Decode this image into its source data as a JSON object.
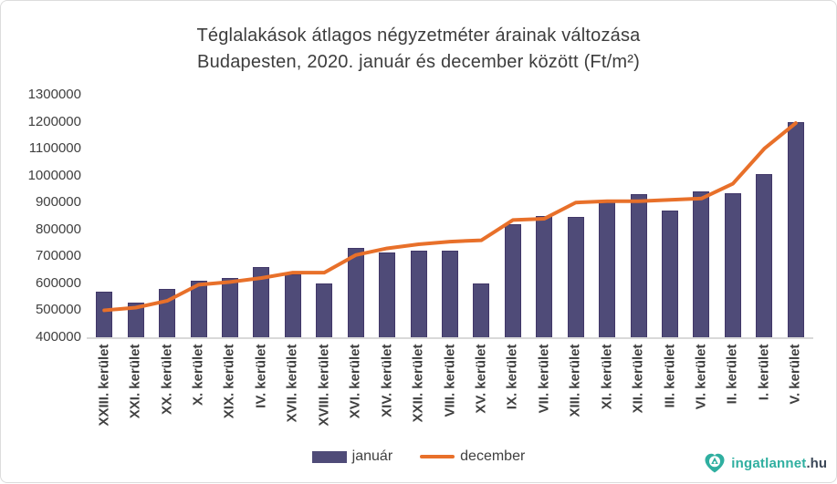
{
  "title": {
    "line1": "Téglalakások átlagos négyzetméter árainak változása",
    "line2": "Budapesten, 2020. január és december között (Ft/m²)"
  },
  "colors": {
    "bar_fill": "#4f4b78",
    "bar_border": "#413768",
    "line": "#e8702a",
    "axis": "#d9d9d9",
    "text": "#404040",
    "logo_teal": "#2fafa0",
    "logo_dark": "#3c4858"
  },
  "watermark": {
    "brand": "ingatlannet",
    "tld": ".hu"
  },
  "chart_data": {
    "type": "bar",
    "subtype": "bar-with-line-overlay",
    "title": "Téglalakások átlagos négyzetméter árainak változása Budapesten, 2020. január és december között (Ft/m²)",
    "xlabel": "",
    "ylabel": "",
    "ylim": [
      400000,
      1300000
    ],
    "ytick_step": 100000,
    "yticks": [
      400000,
      500000,
      600000,
      700000,
      800000,
      900000,
      1000000,
      1100000,
      1200000,
      1300000
    ],
    "grid": false,
    "legend_position": "bottom",
    "categories": [
      "XXIII. kerület",
      "XXI. kerület",
      "XX. kerület",
      "X. kerület",
      "XIX. kerület",
      "IV. kerület",
      "XVII. kerület",
      "XVIII. kerület",
      "XVI. kerület",
      "XIV. kerület",
      "XXII. kerület",
      "VIII. kerület",
      "XV. kerület",
      "IX. kerület",
      "VII. kerület",
      "XIII. kerület",
      "XI. kerület",
      "XII. kerület",
      "III. kerület",
      "VI. kerület",
      "II. kerület",
      "I. kerület",
      "V. kerület"
    ],
    "series": [
      {
        "name": "január",
        "type": "bar",
        "color": "#4f4b78",
        "values": [
          570000,
          530000,
          580000,
          610000,
          620000,
          660000,
          635000,
          600000,
          730000,
          715000,
          720000,
          720000,
          600000,
          820000,
          850000,
          845000,
          900000,
          930000,
          870000,
          940000,
          935000,
          1005000,
          1200000
        ]
      },
      {
        "name": "december",
        "type": "line",
        "color": "#e8702a",
        "values": [
          500000,
          510000,
          535000,
          595000,
          605000,
          620000,
          640000,
          640000,
          705000,
          730000,
          745000,
          755000,
          760000,
          835000,
          840000,
          900000,
          905000,
          905000,
          910000,
          915000,
          970000,
          1100000,
          1195000
        ]
      }
    ]
  }
}
